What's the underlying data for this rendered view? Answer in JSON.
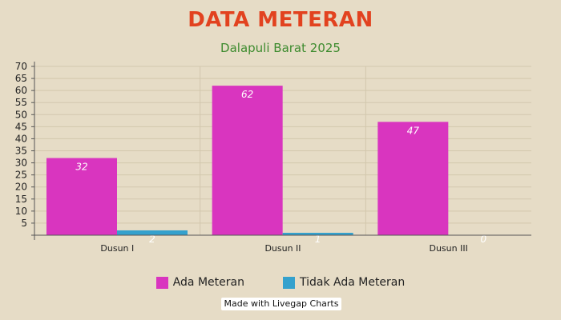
{
  "chart_data": {
    "type": "bar",
    "title": "DATA METERAN",
    "subtitle": "Dalapuli Barat 2025",
    "categories": [
      "Dusun I",
      "Dusun II",
      "Dusun III"
    ],
    "series": [
      {
        "name": "Ada Meteran",
        "values": [
          32,
          62,
          47
        ],
        "color": "#d935bf"
      },
      {
        "name": "Tidak Ada Meteran",
        "values": [
          2,
          1,
          0
        ],
        "color": "#34a1cd"
      }
    ],
    "ylim": [
      0,
      70
    ],
    "yticks": [
      5,
      10,
      15,
      20,
      25,
      30,
      35,
      40,
      45,
      50,
      55,
      60,
      65,
      70
    ],
    "grid": true,
    "legend_position": "bottom"
  },
  "credit": "Made with Livegap Charts"
}
